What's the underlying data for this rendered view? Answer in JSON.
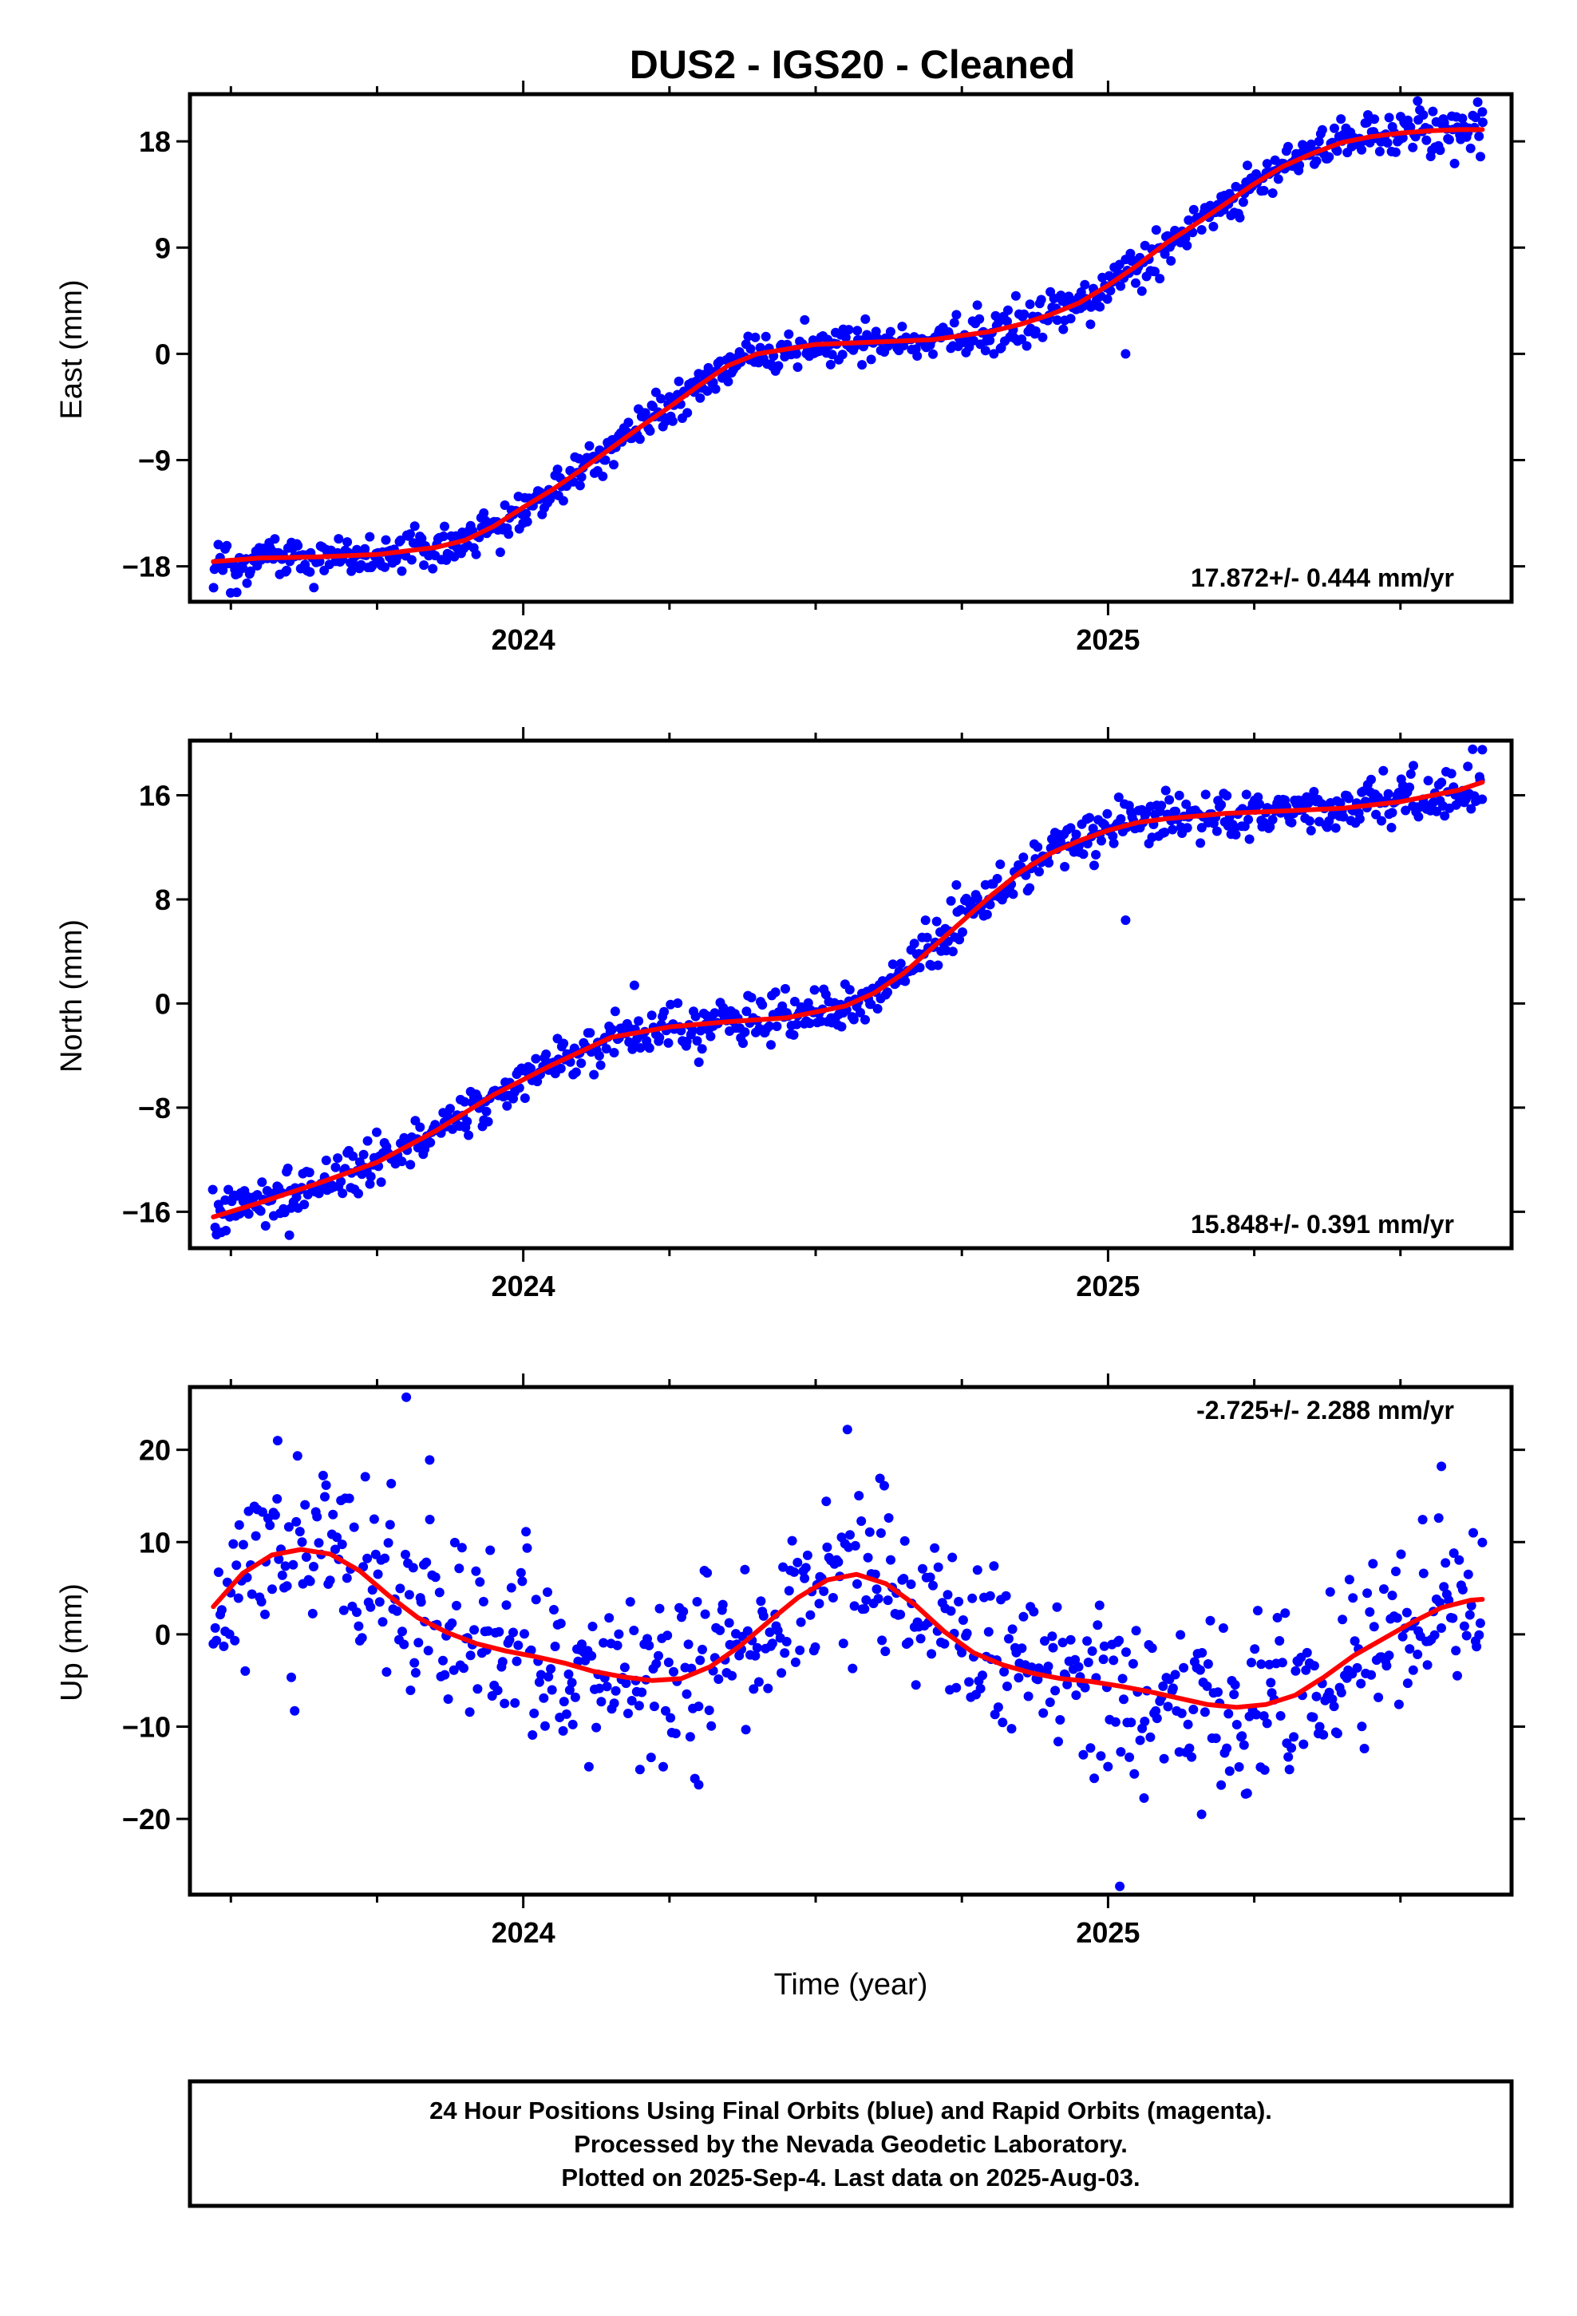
{
  "title": "DUS2  - IGS20 - Cleaned",
  "xlabel": "Time (year)",
  "footer": {
    "line1": "24 Hour Positions Using Final Orbits (blue) and Rapid Orbits (magenta).",
    "line2": "Processed by the Nevada Geodetic Laboratory.",
    "line3": "Plotted on 2025-Sep-4. Last data on 2025-Aug-03."
  },
  "colors": {
    "points": "#0000ff",
    "fit": "#ff0000",
    "frame": "#000000",
    "background": "#ffffff"
  },
  "chart_data": [
    {
      "type": "scatter",
      "panel": "east",
      "ylabel": "East (mm)",
      "xlim": [
        2023.43,
        2025.69
      ],
      "ylim": [
        -21,
        22
      ],
      "xticks": [
        2024,
        2025
      ],
      "xtick_labels": [
        "2024",
        "2025"
      ],
      "xminor": [
        2023.5,
        2023.75,
        2024.25,
        2024.5,
        2024.75,
        2025.25,
        2025.5
      ],
      "yticks": [
        -18,
        -9,
        0,
        9,
        18
      ],
      "ytick_labels": [
        "−18",
        "−9",
        "0",
        "9",
        "18"
      ],
      "rate": "17.872+/- 0.444 mm/yr",
      "rate_position": "bottom-right",
      "fit_x": [
        2023.47,
        2023.55,
        2023.65,
        2023.75,
        2023.85,
        2023.9,
        2023.95,
        2024.0,
        2024.05,
        2024.1,
        2024.15,
        2024.2,
        2024.25,
        2024.3,
        2024.35,
        2024.4,
        2024.5,
        2024.6,
        2024.7,
        2024.8,
        2024.85,
        2024.9,
        2024.95,
        2025.0,
        2025.05,
        2025.1,
        2025.15,
        2025.2,
        2025.25,
        2025.3,
        2025.35,
        2025.4,
        2025.45,
        2025.5,
        2025.55,
        2025.6,
        2025.64
      ],
      "fit_y": [
        -17.6,
        -17.3,
        -17.2,
        -17.0,
        -16.4,
        -15.8,
        -14.6,
        -13.0,
        -11.5,
        -9.8,
        -8.0,
        -6.2,
        -4.5,
        -2.7,
        -1.0,
        0.0,
        0.8,
        1.0,
        1.2,
        1.9,
        2.5,
        3.3,
        4.3,
        5.8,
        7.5,
        9.4,
        11.0,
        12.7,
        14.4,
        15.9,
        17.0,
        17.9,
        18.4,
        18.7,
        18.9,
        19.0,
        19.0
      ],
      "scatter": {
        "n_points": 780,
        "seed": 3,
        "sigma": 0.9,
        "outliers": [
          {
            "x": 2023.51,
            "y": -20.2
          },
          {
            "x": 2023.83,
            "y": -17.9
          },
          {
            "x": 2024.97,
            "y": 2.5
          },
          {
            "x": 2025.03,
            "y": 0.0
          },
          {
            "x": 2025.64,
            "y": 20.5
          }
        ]
      }
    },
    {
      "type": "scatter",
      "panel": "north",
      "ylabel": "North (mm)",
      "xlim": [
        2023.43,
        2025.69
      ],
      "ylim": [
        -18.8,
        20.2
      ],
      "xticks": [
        2024,
        2025
      ],
      "xtick_labels": [
        "2024",
        "2025"
      ],
      "xminor": [
        2023.5,
        2023.75,
        2024.25,
        2024.5,
        2024.75,
        2025.25,
        2025.5
      ],
      "yticks": [
        -16,
        -8,
        0,
        8,
        16
      ],
      "ytick_labels": [
        "−16",
        "−8",
        "0",
        "8",
        "16"
      ],
      "rate": "15.848+/- 0.391 mm/yr",
      "rate_position": "bottom-right",
      "fit_x": [
        2023.47,
        2023.55,
        2023.65,
        2023.75,
        2023.85,
        2023.95,
        2024.05,
        2024.15,
        2024.25,
        2024.35,
        2024.45,
        2024.55,
        2024.6,
        2024.65,
        2024.7,
        2024.75,
        2024.8,
        2024.85,
        2024.9,
        2024.95,
        2025.0,
        2025.05,
        2025.1,
        2025.15,
        2025.2,
        2025.3,
        2025.4,
        2025.5,
        2025.6,
        2025.64
      ],
      "fit_y": [
        -16.4,
        -15.3,
        -13.8,
        -12.2,
        -9.8,
        -7.0,
        -4.7,
        -2.6,
        -1.8,
        -1.4,
        -1.1,
        -0.2,
        0.8,
        2.3,
        4.3,
        6.3,
        8.3,
        10.1,
        11.5,
        12.5,
        13.3,
        13.9,
        14.2,
        14.4,
        14.6,
        14.8,
        15.0,
        15.5,
        16.4,
        17.0
      ],
      "scatter": {
        "n_points": 780,
        "seed": 7,
        "sigma": 0.9,
        "outliers": [
          {
            "x": 2023.6,
            "y": -17.8
          },
          {
            "x": 2024.19,
            "y": 1.4
          },
          {
            "x": 2025.03,
            "y": 6.4
          },
          {
            "x": 2025.64,
            "y": 19.5
          }
        ]
      }
    },
    {
      "type": "scatter",
      "panel": "up",
      "ylabel": "Up (mm)",
      "xlim": [
        2023.43,
        2025.69
      ],
      "ylim": [
        -28.2,
        26.8
      ],
      "xticks": [
        2024,
        2025
      ],
      "xtick_labels": [
        "2024",
        "2025"
      ],
      "xminor": [
        2023.5,
        2023.75,
        2024.25,
        2024.5,
        2024.75,
        2025.25,
        2025.5
      ],
      "yticks": [
        -20,
        -10,
        0,
        10,
        20
      ],
      "ytick_labels": [
        "−20",
        "−10",
        "0",
        "10",
        "20"
      ],
      "rate": "-2.725+/- 2.288 mm/yr",
      "rate_position": "top-right",
      "fit_x": [
        2023.47,
        2023.52,
        2023.57,
        2023.62,
        2023.67,
        2023.72,
        2023.77,
        2023.82,
        2023.87,
        2023.92,
        2023.97,
        2024.02,
        2024.07,
        2024.12,
        2024.17,
        2024.22,
        2024.27,
        2024.32,
        2024.37,
        2024.42,
        2024.47,
        2024.52,
        2024.57,
        2024.62,
        2024.67,
        2024.72,
        2024.77,
        2024.82,
        2024.87,
        2024.92,
        2024.97,
        2025.02,
        2025.07,
        2025.12,
        2025.17,
        2025.22,
        2025.27,
        2025.32,
        2025.37,
        2025.42,
        2025.47,
        2025.52,
        2025.57,
        2025.62,
        2025.64
      ],
      "fit_y": [
        3.0,
        6.6,
        8.6,
        9.2,
        8.7,
        6.9,
        4.2,
        1.8,
        0.2,
        -1.0,
        -1.8,
        -2.4,
        -3.1,
        -4.0,
        -4.6,
        -5.0,
        -4.8,
        -3.5,
        -1.3,
        1.4,
        4.0,
        5.9,
        6.5,
        5.5,
        3.2,
        0.3,
        -2.0,
        -3.3,
        -4.2,
        -4.8,
        -5.1,
        -5.6,
        -6.2,
        -6.9,
        -7.6,
        -7.9,
        -7.6,
        -6.6,
        -4.6,
        -2.3,
        -0.5,
        1.3,
        2.9,
        3.7,
        3.8
      ],
      "scatter": {
        "n_points": 720,
        "seed": 11,
        "sigma": 4.6,
        "outliers": [
          {
            "x": 2023.58,
            "y": 21.0
          },
          {
            "x": 2023.8,
            "y": 25.7
          },
          {
            "x": 2023.84,
            "y": 18.9
          },
          {
            "x": 2024.3,
            "y": -16.3
          },
          {
            "x": 2024.61,
            "y": 16.9
          },
          {
            "x": 2025.02,
            "y": -27.3
          },
          {
            "x": 2025.16,
            "y": -19.5
          },
          {
            "x": 2025.57,
            "y": 18.2
          }
        ]
      }
    }
  ]
}
